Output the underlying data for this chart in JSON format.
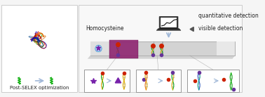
{
  "bg_color": "#f5f5f5",
  "left_panel_bg": "#ffffff",
  "right_panel_bg": "#f0f0f0",
  "left_border_color": "#cccccc",
  "right_border_color": "#cccccc",
  "strip_color": "#d3d3d3",
  "strip_shadow": "#b0b0b0",
  "membrane_color": "#8b1a6b",
  "title_text": "Post-SELEX optimization",
  "label_homocysteine": "Homocysteine",
  "label_quantitative": "quantitative detection",
  "label_visible": "visible detection",
  "arrow_color": "#a0b8d8",
  "laptop_color": "#333333",
  "laptop_screen_color": "#ffffff",
  "font_size_labels": 5.5,
  "font_size_title": 5.0,
  "overall_figsize": [
    3.78,
    1.38
  ],
  "dpi": 100,
  "green_helix_color": "#00aa00",
  "red_bead_color": "#cc2200",
  "purple_bead_color": "#663399",
  "yellow_strand_color": "#ddaa00",
  "orange_strand_color": "#ee7700",
  "blue_strand_color": "#2255cc",
  "teal_strand_color": "#009988",
  "purple_aptamer_color": "#7722aa"
}
